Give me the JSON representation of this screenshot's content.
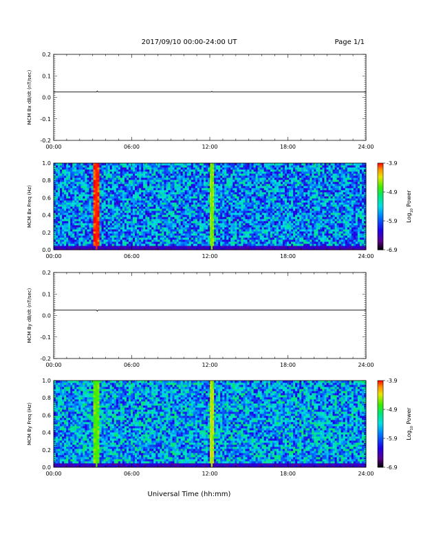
{
  "header": {
    "title": "2017/09/10  00:00-24:00 UT",
    "page": "Page 1/1"
  },
  "chart_data": [
    {
      "type": "line",
      "title": "",
      "ylabel": "MCM Bx dB/dt (nT/sec)",
      "xlim": [
        0,
        24
      ],
      "ylim": [
        -0.2,
        0.2
      ],
      "xtick_labels": [
        "00:00",
        "06:00",
        "12:00",
        "18:00",
        "24:00"
      ],
      "ytick_labels": [
        "0.2",
        "0.1",
        "0.0",
        "-0.1",
        "-0.2"
      ],
      "ytick_values": [
        0.2,
        0.1,
        0.0,
        -0.1,
        -0.2
      ],
      "grid": false,
      "series": [
        {
          "x": [
            0,
            1,
            3,
            3.3,
            3.35,
            3.4,
            6,
            9,
            12,
            12.1,
            12.15,
            12.2,
            15,
            18,
            21,
            24
          ],
          "y": [
            0.025,
            0.025,
            0.025,
            0.025,
            0.03,
            0.025,
            0.025,
            0.025,
            0.025,
            0.025,
            0.028,
            0.025,
            0.025,
            0.025,
            0.025,
            0.025
          ]
        }
      ]
    },
    {
      "type": "heatmap",
      "ylabel": "MCM Bx Freq (Hz)",
      "xlim": [
        0,
        24
      ],
      "ylim": [
        0,
        1.0
      ],
      "xtick_labels": [
        "00:00",
        "06:00",
        "12:00",
        "18:00",
        "24:00"
      ],
      "ytick_labels": [
        "1.0",
        "0.8",
        "0.6",
        "0.4",
        "0.2",
        "0.0"
      ],
      "ytick_values": [
        1.0,
        0.8,
        0.6,
        0.4,
        0.2,
        0.0
      ],
      "colorbar": {
        "label": "Log10 Power",
        "label_main": "Log",
        "label_sub": "10",
        "label_end": " Power",
        "range": [
          -6.9,
          -3.9
        ],
        "tick_labels": [
          "-3.9",
          "-4.9",
          "-5.9",
          "-6.9"
        ],
        "tick_values": [
          -3.9,
          -4.9,
          -5.9,
          -6.9
        ]
      },
      "background_level": -5.7,
      "events": [
        {
          "x": 3.3,
          "level": -3.95,
          "width": 0.15
        },
        {
          "x": 12.15,
          "level": -4.6,
          "width": 0.15
        }
      ]
    },
    {
      "type": "line",
      "ylabel": "MCM By dB/dt (nT/sec)",
      "xlim": [
        0,
        24
      ],
      "ylim": [
        -0.2,
        0.2
      ],
      "xtick_labels": [
        "00:00",
        "06:00",
        "12:00",
        "18:00",
        "24:00"
      ],
      "ytick_labels": [
        "0.2",
        "0.1",
        "0.0",
        "-0.1",
        "-0.2"
      ],
      "ytick_values": [
        0.2,
        0.1,
        0.0,
        -0.1,
        -0.2
      ],
      "grid": false,
      "series": [
        {
          "x": [
            0,
            3,
            3.3,
            3.35,
            3.4,
            6,
            9,
            12,
            15,
            18,
            21,
            24
          ],
          "y": [
            0.025,
            0.025,
            0.025,
            0.02,
            0.025,
            0.025,
            0.025,
            0.025,
            0.025,
            0.025,
            0.025,
            0.025
          ]
        }
      ]
    },
    {
      "type": "heatmap",
      "ylabel": "MCM By Freq (Hz)",
      "xlim": [
        0,
        24
      ],
      "ylim": [
        0,
        1.0
      ],
      "xtick_labels": [
        "00:00",
        "06:00",
        "12:00",
        "18:00",
        "24:00"
      ],
      "ytick_labels": [
        "1.0",
        "0.8",
        "0.6",
        "0.4",
        "0.2",
        "0.0"
      ],
      "ytick_values": [
        1.0,
        0.8,
        0.6,
        0.4,
        0.2,
        0.0
      ],
      "xlabel": "Universal Time (hh:mm)",
      "colorbar": {
        "label": "Log10 Power",
        "label_main": "Log",
        "label_sub": "10",
        "label_end": " Power",
        "range": [
          -6.9,
          -3.9
        ],
        "tick_labels": [
          "-3.9",
          "-4.9",
          "-5.9",
          "-6.9"
        ],
        "tick_values": [
          -3.9,
          -4.9,
          -5.9,
          -6.9
        ]
      },
      "background_level": -5.6,
      "events": [
        {
          "x": 3.3,
          "level": -4.7,
          "width": 0.15
        },
        {
          "x": 12.15,
          "level": -4.5,
          "width": 0.15
        }
      ]
    }
  ]
}
